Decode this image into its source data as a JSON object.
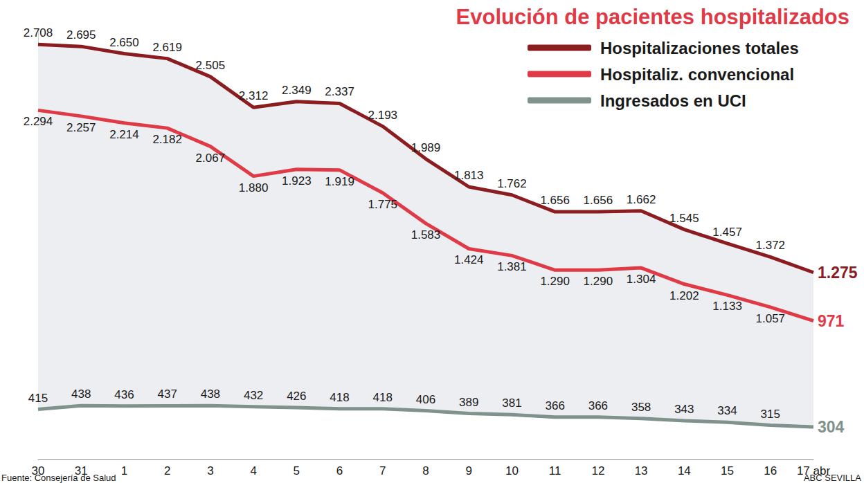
{
  "chart_data": {
    "type": "line",
    "title": "Evolución de pacientes hospitalizados",
    "source": "Fuente: Consejería de Salud",
    "credit": "ABC SEVILLA",
    "categories": [
      "30",
      "31",
      "1",
      "2",
      "3",
      "4",
      "5",
      "6",
      "7",
      "8",
      "9",
      "10",
      "11",
      "12",
      "13",
      "14",
      "15",
      "16",
      "17 abr"
    ],
    "series": [
      {
        "name": "Hospitalizaciones totales",
        "color": "#8b1c1f",
        "values": [
          2708,
          2695,
          2650,
          2619,
          2505,
          2312,
          2349,
          2337,
          2193,
          1989,
          1813,
          1762,
          1656,
          1656,
          1662,
          1545,
          1457,
          1372,
          1275
        ],
        "value_labels": [
          "2.708",
          "2.695",
          "2.650",
          "2.619",
          "2.505",
          "2.312",
          "2.349",
          "2.337",
          "2.193",
          "1.989",
          "1.813",
          "1.762",
          "1.656",
          "1.656",
          "1.662",
          "1.545",
          "1.457",
          "1.372",
          "1.275"
        ]
      },
      {
        "name": "Hospitaliz. convencional",
        "color": "#e03a47",
        "values": [
          2294,
          2257,
          2214,
          2182,
          2067,
          1880,
          1923,
          1919,
          1775,
          1583,
          1424,
          1381,
          1290,
          1290,
          1304,
          1202,
          1133,
          1057,
          971
        ],
        "value_labels": [
          "2.294",
          "2.257",
          "2.214",
          "2.182",
          "2.067",
          "1.880",
          "1.923",
          "1.919",
          "1.775",
          "1.583",
          "1.424",
          "1.381",
          "1.290",
          "1.290",
          "1.304",
          "1.202",
          "1.133",
          "1.057",
          "971"
        ]
      },
      {
        "name": "Ingresados en UCI",
        "color": "#7f928c",
        "values": [
          415,
          438,
          436,
          437,
          438,
          432,
          426,
          418,
          418,
          406,
          389,
          381,
          366,
          366,
          358,
          343,
          334,
          315,
          304
        ]
      }
    ],
    "ylim": [
      100,
      2800
    ],
    "data_labels": true,
    "tick_labels": "x",
    "grid": false,
    "legend": "top right"
  }
}
